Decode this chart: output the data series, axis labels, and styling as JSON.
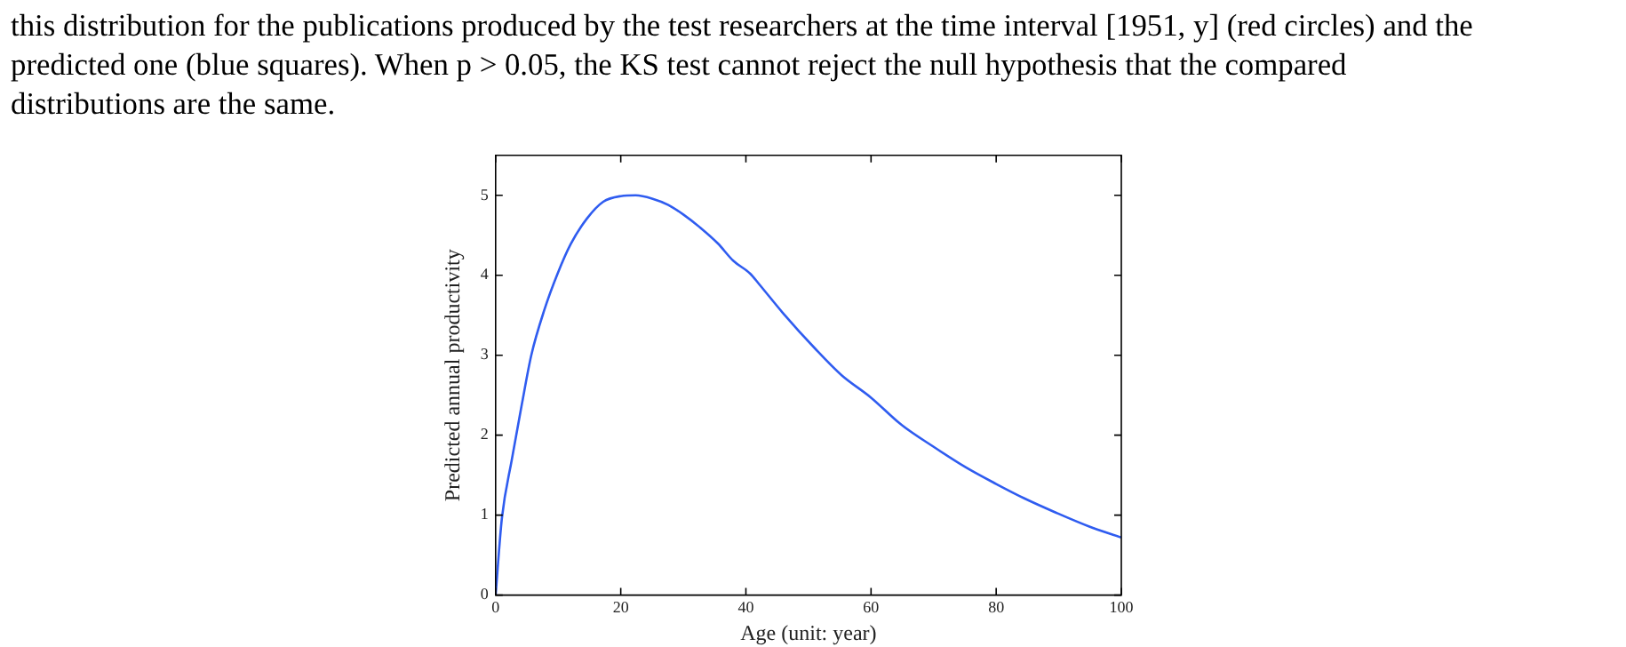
{
  "chart_data": {
    "type": "line",
    "xlabel": "Age (unit: year)",
    "ylabel": "Predicted annual productivity",
    "annotations": [
      "this distribution for the publications produced by the test researchers at the time interval [1951, y] (red circles) and the predicted one (blue squares). When p > 0.05, the KS test cannot reject the null hypothesis that the compared distributions are the same."
    ],
    "series": [
      {
        "color": "#2f5cf0",
        "x": [
          0,
          1,
          2.6,
          4.2,
          5.7,
          7.8,
          9.9,
          12,
          14.6,
          17.2,
          20,
          22.4,
          25,
          27.6,
          30,
          32.8,
          35.5,
          38,
          40.7,
          42,
          45.9,
          51.1,
          55.3,
          60,
          64.7,
          69.9,
          75.1,
          80,
          84.5,
          89.6,
          94.8,
          100
        ],
        "values": [
          0,
          0.96,
          1.7,
          2.39,
          3,
          3.57,
          4.02,
          4.39,
          4.71,
          4.92,
          4.99,
          5,
          4.96,
          4.88,
          4.76,
          4.59,
          4.4,
          4.18,
          4.02,
          3.9,
          3.53,
          3.08,
          2.75,
          2.47,
          2.14,
          1.86,
          1.6,
          1.39,
          1.21,
          1.03,
          0.86,
          0.72
        ]
      }
    ],
    "xlim": [
      0,
      100
    ],
    "xticks": [
      0,
      20,
      40,
      60,
      80,
      100
    ],
    "ylim": [
      0,
      5.5
    ],
    "yticks": [
      0,
      1,
      2,
      3,
      4,
      5
    ],
    "grid": false,
    "legend": false,
    "marker": "none",
    "line_style": "solid"
  }
}
